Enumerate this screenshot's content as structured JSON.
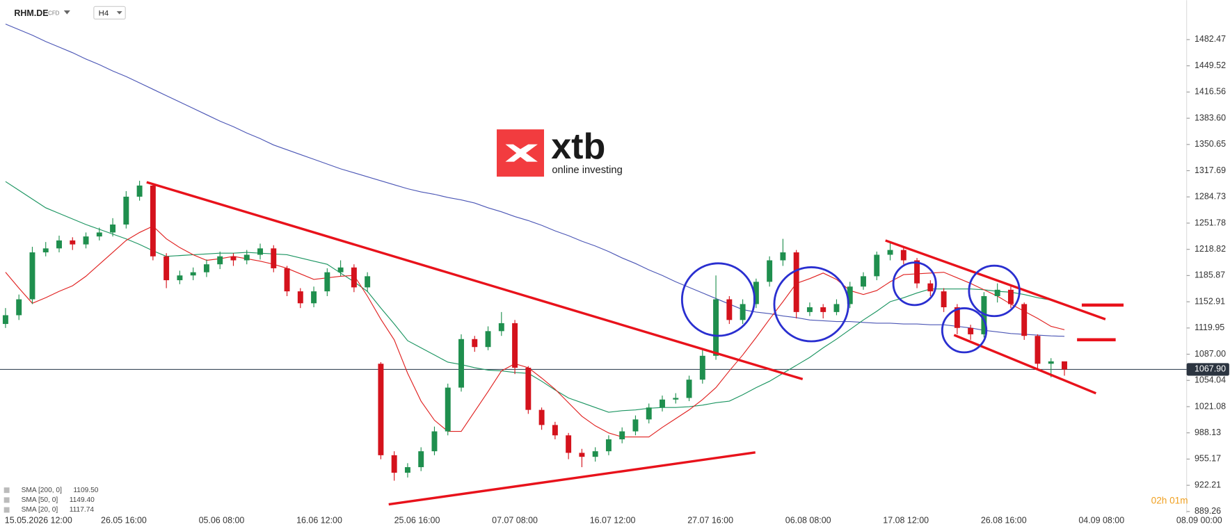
{
  "header": {
    "symbol": "RHM.DE",
    "instrument_type": "CFD",
    "timeframe": "H4"
  },
  "logo": {
    "brand": "xtb",
    "tagline": "online investing"
  },
  "timer": "02h 01m",
  "chart_data": {
    "type": "candlestick",
    "x_labels": [
      "15.05.2026 12:00",
      "26.05 16:00",
      "05.06 08:00",
      "16.06 12:00",
      "25.06 16:00",
      "07.07 08:00",
      "16.07 12:00",
      "27.07 16:00",
      "06.08 08:00",
      "17.08 12:00",
      "26.08 16:00",
      "04.09 08:00",
      "08.09 00:00"
    ],
    "open": [
      1125,
      1136,
      1156,
      1215,
      1220,
      1230,
      1225,
      1235,
      1240,
      1250,
      1285,
      1299,
      1210,
      1180,
      1186,
      1190,
      1200,
      1210,
      1205,
      1212,
      1220,
      1195,
      1166,
      1151,
      1166,
      1190,
      1196,
      1171,
      1075,
      960,
      938,
      945,
      965,
      990,
      1045,
      1106,
      1096,
      1116,
      1126,
      1070,
      1017,
      998,
      985,
      963,
      958,
      965,
      980,
      990,
      1005,
      1020,
      1030,
      1032,
      1055,
      1085,
      1156,
      1130,
      1150,
      1178,
      1205,
      1215,
      1140,
      1146,
      1140,
      1150,
      1172,
      1185,
      1212,
      1218,
      1205,
      1176,
      1166,
      1146,
      1120,
      1112,
      1160,
      1168,
      1150,
      1110,
      1075,
      1078
    ],
    "high": [
      1145,
      1162,
      1222,
      1228,
      1236,
      1234,
      1240,
      1246,
      1258,
      1292,
      1305,
      1300,
      1214,
      1192,
      1196,
      1206,
      1216,
      1214,
      1218,
      1226,
      1224,
      1198,
      1170,
      1172,
      1195,
      1205,
      1200,
      1190,
      1077,
      965,
      950,
      970,
      996,
      1050,
      1112,
      1110,
      1122,
      1140,
      1130,
      1072,
      1020,
      1002,
      988,
      968,
      970,
      985,
      995,
      1010,
      1025,
      1035,
      1038,
      1060,
      1092,
      1186,
      1160,
      1156,
      1182,
      1210,
      1232,
      1218,
      1152,
      1150,
      1156,
      1178,
      1190,
      1216,
      1228,
      1222,
      1208,
      1180,
      1170,
      1150,
      1124,
      1165,
      1176,
      1172,
      1152,
      1112,
      1082,
      1072
    ],
    "low": [
      1120,
      1130,
      1150,
      1210,
      1215,
      1218,
      1220,
      1230,
      1235,
      1245,
      1280,
      1205,
      1170,
      1175,
      1180,
      1184,
      1194,
      1198,
      1200,
      1206,
      1190,
      1160,
      1145,
      1146,
      1160,
      1185,
      1165,
      1165,
      955,
      928,
      932,
      940,
      960,
      985,
      1040,
      1090,
      1092,
      1110,
      1062,
      1012,
      992,
      980,
      955,
      945,
      952,
      960,
      975,
      985,
      1000,
      1015,
      1025,
      1028,
      1050,
      1080,
      1125,
      1125,
      1145,
      1172,
      1198,
      1132,
      1135,
      1132,
      1136,
      1145,
      1168,
      1180,
      1205,
      1200,
      1170,
      1160,
      1140,
      1112,
      1105,
      1108,
      1152,
      1145,
      1105,
      1068,
      1058,
      1060
    ],
    "close": [
      1136,
      1156,
      1215,
      1220,
      1230,
      1225,
      1235,
      1240,
      1250,
      1285,
      1299,
      1210,
      1180,
      1186,
      1190,
      1200,
      1210,
      1205,
      1212,
      1220,
      1195,
      1166,
      1151,
      1166,
      1190,
      1196,
      1171,
      1185,
      960,
      938,
      945,
      965,
      990,
      1045,
      1106,
      1096,
      1116,
      1126,
      1070,
      1017,
      998,
      985,
      963,
      958,
      965,
      980,
      990,
      1005,
      1020,
      1030,
      1032,
      1055,
      1085,
      1156,
      1130,
      1150,
      1178,
      1205,
      1215,
      1140,
      1146,
      1140,
      1150,
      1172,
      1185,
      1212,
      1218,
      1205,
      1176,
      1166,
      1146,
      1120,
      1112,
      1160,
      1168,
      1150,
      1110,
      1075,
      1078,
      1067.9
    ],
    "up_color": "#1f8f4e",
    "down_color": "#d4121c",
    "series": [
      {
        "name": "SMA [200, 0]",
        "legend_value": "1109.50",
        "color": "#4a55b5",
        "values": [
          1502,
          1495,
          1488,
          1480,
          1473,
          1466,
          1458,
          1451,
          1443,
          1436,
          1428,
          1420,
          1412,
          1404,
          1396,
          1388,
          1380,
          1373,
          1365,
          1358,
          1350,
          1344,
          1338,
          1332,
          1326,
          1320,
          1315,
          1310,
          1305,
          1300,
          1295,
          1291,
          1288,
          1284,
          1281,
          1277,
          1271,
          1266,
          1260,
          1255,
          1249,
          1242,
          1236,
          1229,
          1223,
          1216,
          1208,
          1201,
          1193,
          1186,
          1178,
          1171,
          1164,
          1157,
          1150,
          1143,
          1140,
          1138,
          1135,
          1133,
          1130,
          1129,
          1128,
          1128,
          1127,
          1126,
          1126,
          1125,
          1125,
          1124,
          1124,
          1122,
          1120,
          1117,
          1115,
          1113,
          1112,
          1111,
          1110,
          1109.5
        ]
      },
      {
        "name": "SMA [50, 0]",
        "legend_value": "1149.40",
        "color": "#1a9460",
        "values": [
          1304,
          1293,
          1282,
          1271,
          1264,
          1257,
          1250,
          1244,
          1238,
          1232,
          1225,
          1217,
          1210,
          1211,
          1212,
          1213,
          1214,
          1214,
          1215,
          1214,
          1213,
          1212,
          1208,
          1204,
          1200,
          1189,
          1178,
          1166,
          1145,
          1125,
          1104,
          1095,
          1086,
          1077,
          1074,
          1070,
          1067,
          1066,
          1064,
          1063,
          1053,
          1042,
          1032,
          1026,
          1020,
          1014,
          1016,
          1017,
          1019,
          1020,
          1020,
          1021,
          1023,
          1026,
          1028,
          1036,
          1045,
          1053,
          1063,
          1073,
          1083,
          1095,
          1106,
          1118,
          1130,
          1141,
          1153,
          1158,
          1164,
          1169,
          1169,
          1169,
          1169,
          1168,
          1166,
          1165,
          1162,
          1158,
          1155,
          1149.4
        ]
      },
      {
        "name": "SMA [20, 0]",
        "legend_value": "1117.74",
        "color": "#e0201f",
        "values": [
          1190,
          1170,
          1151,
          1158,
          1166,
          1173,
          1185,
          1200,
          1215,
          1230,
          1240,
          1248,
          1232,
          1221,
          1212,
          1205,
          1207,
          1210,
          1207,
          1204,
          1200,
          1195,
          1188,
          1181,
          1183,
          1185,
          1186,
          1160,
          1131,
          1105,
          1063,
          1028,
          1004,
          990,
          990,
          1015,
          1040,
          1066,
          1075,
          1070,
          1057,
          1043,
          1026,
          1009,
          997,
          988,
          983,
          983,
          983,
          995,
          1006,
          1017,
          1030,
          1045,
          1066,
          1086,
          1108,
          1131,
          1153,
          1176,
          1182,
          1189,
          1181,
          1167,
          1162,
          1167,
          1178,
          1187,
          1188,
          1189,
          1190,
          1183,
          1176,
          1168,
          1160,
          1150,
          1141,
          1132,
          1122,
          1117.74
        ]
      }
    ],
    "ylim": [
      867.5,
      1532
    ],
    "yticks": [
      1482.47,
      1449.52,
      1416.56,
      {
        "value": 1383.6,
        "label": "1383.60"
      },
      1350.65,
      1317.69,
      1284.73,
      1251.78,
      1218.82,
      1185.87,
      1152.91,
      1119.95,
      {
        "value": 1087,
        "label": "1087.00"
      },
      1054.04,
      1021.08,
      988.13,
      955.17,
      922.21,
      889.26
    ],
    "last_price": {
      "value": 1067.9,
      "label": "1067.90"
    }
  }
}
